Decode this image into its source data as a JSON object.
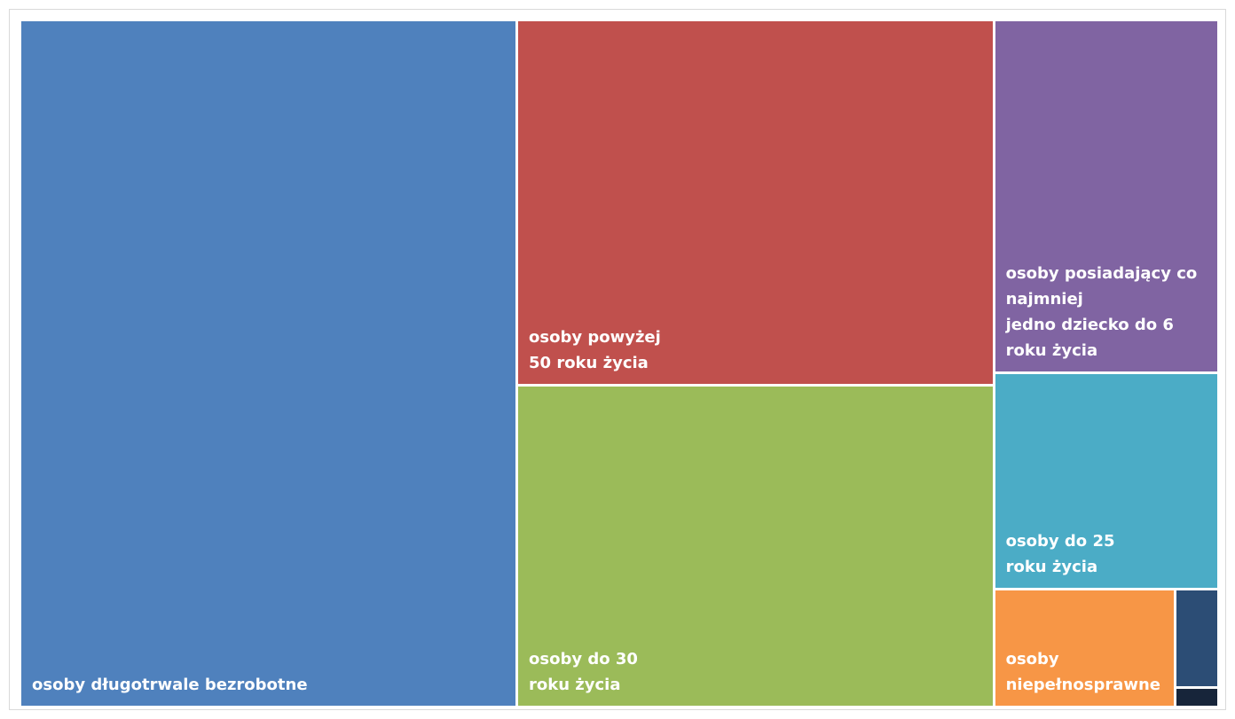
{
  "chart_data": {
    "type": "treemap",
    "title": "",
    "items": [
      {
        "label": "osoby długotrwale bezrobotne",
        "value": 40.0,
        "color": "#4F81BD",
        "lines": [
          "osoby długotrwale bezrobotne"
        ]
      },
      {
        "label": "osoby powyżej 50 roku życia",
        "value": 20.4,
        "color": "#C0504D",
        "lines": [
          "osoby powyżej",
          "50 roku życia"
        ]
      },
      {
        "label": "osoby do 30 roku życia",
        "value": 18.0,
        "color": "#9BBB59",
        "lines": [
          "osoby do 30",
          "roku życia"
        ]
      },
      {
        "label": "osoby posiadający co najmniej jedno dziecko do 6 roku życia",
        "value": 9.3,
        "color": "#8064A2",
        "lines": [
          "osoby posiadający co najmniej",
          "jedno dziecko do 6 roku życia"
        ]
      },
      {
        "label": "osoby do 25 roku życia",
        "value": 5.7,
        "color": "#4BACC6",
        "lines": [
          "osoby do 25",
          "roku życia"
        ]
      },
      {
        "label": "osoby niepełnosprawne",
        "value": 2.5,
        "color": "#F79646",
        "lines": [
          "osoby",
          "niepełnosprawne"
        ]
      },
      {
        "label": "",
        "value": 0.5,
        "color": "#2C4D75",
        "lines": []
      },
      {
        "label": "",
        "value": 0.1,
        "color": "#17253A",
        "lines": []
      }
    ]
  }
}
